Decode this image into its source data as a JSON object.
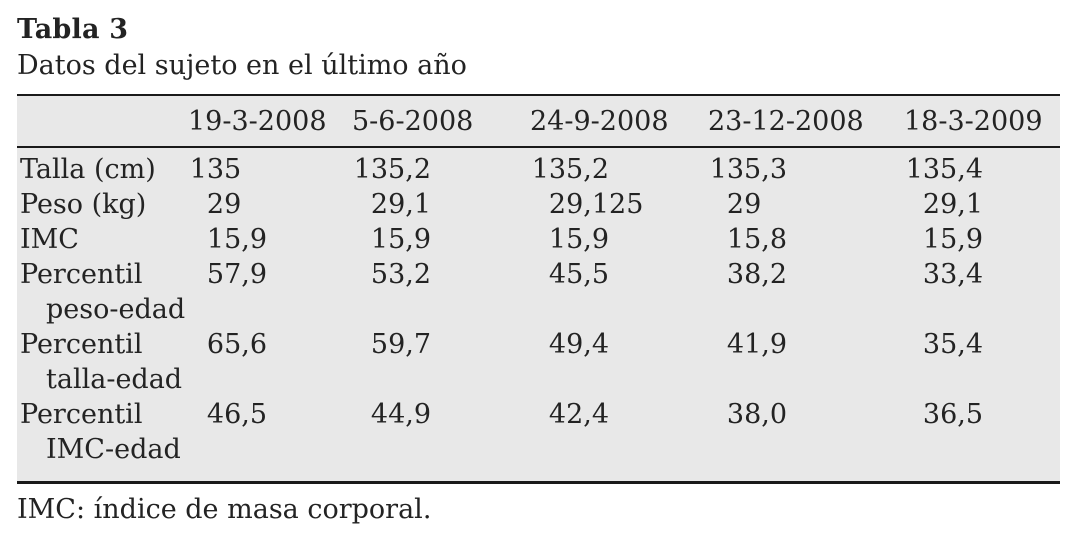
{
  "table": {
    "label": "Tabla 3",
    "caption": "Datos del sujeto en el último año",
    "columns": [
      "",
      "19-3-2008",
      "5-6-2008",
      "24-9-2008",
      "23-12-2008",
      "18-3-2009"
    ],
    "rows": [
      {
        "label": "Talla (cm)",
        "values": [
          "135",
          "135,2",
          "135,2",
          "135,3",
          "135,4"
        ]
      },
      {
        "label": "Peso (kg)",
        "values": [
          "29",
          "29,1",
          "29,125",
          "29",
          "29,1"
        ]
      },
      {
        "label": "IMC",
        "values": [
          "15,9",
          "15,9",
          "15,9",
          "15,8",
          "15,9"
        ]
      },
      {
        "label": "Percentil peso-edad",
        "values": [
          "57,9",
          "53,2",
          "45,5",
          "38,2",
          "33,4"
        ]
      },
      {
        "label": "Percentil talla-edad",
        "values": [
          "65,6",
          "59,7",
          "49,4",
          "41,9",
          "35,4"
        ]
      },
      {
        "label": "Percentil IMC-edad",
        "values": [
          "46,5",
          "44,9",
          "42,4",
          "38,0",
          "36,5"
        ]
      }
    ],
    "footnote": "IMC: índice de masa corporal.",
    "colors": {
      "band_background": "#e8e8e8",
      "rule": "#1a1a1a",
      "text": "#232323",
      "page_background": "#ffffff"
    }
  }
}
